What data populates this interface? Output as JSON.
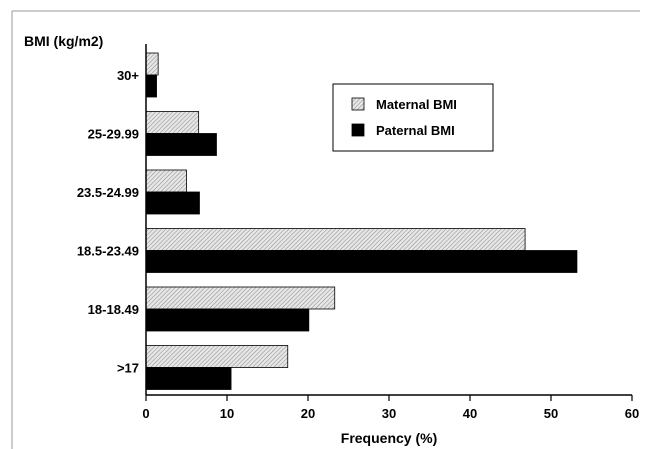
{
  "chart_data": {
    "type": "bar",
    "orientation": "horizontal",
    "ylabel": "BMI (kg/m2)",
    "xlabel": "Frequency (%)",
    "xlim": [
      0,
      60
    ],
    "xticks": [
      0,
      10,
      20,
      30,
      40,
      50,
      60
    ],
    "categories": [
      "30+",
      "25-29.99",
      "23.5-24.99",
      "18.5-23.49",
      "18-18.49",
      ">17"
    ],
    "series": [
      {
        "name": "Maternal BMI",
        "values": [
          1.5,
          6.5,
          5.0,
          46.8,
          23.3,
          17.5
        ],
        "color": "#d9d9d9",
        "pattern": "hatched"
      },
      {
        "name": "Paternal BMI",
        "values": [
          1.3,
          8.7,
          6.6,
          53.2,
          20.1,
          10.5
        ],
        "color": "#000000",
        "pattern": "solid"
      }
    ],
    "legend_position": "top-right",
    "grid": false
  }
}
